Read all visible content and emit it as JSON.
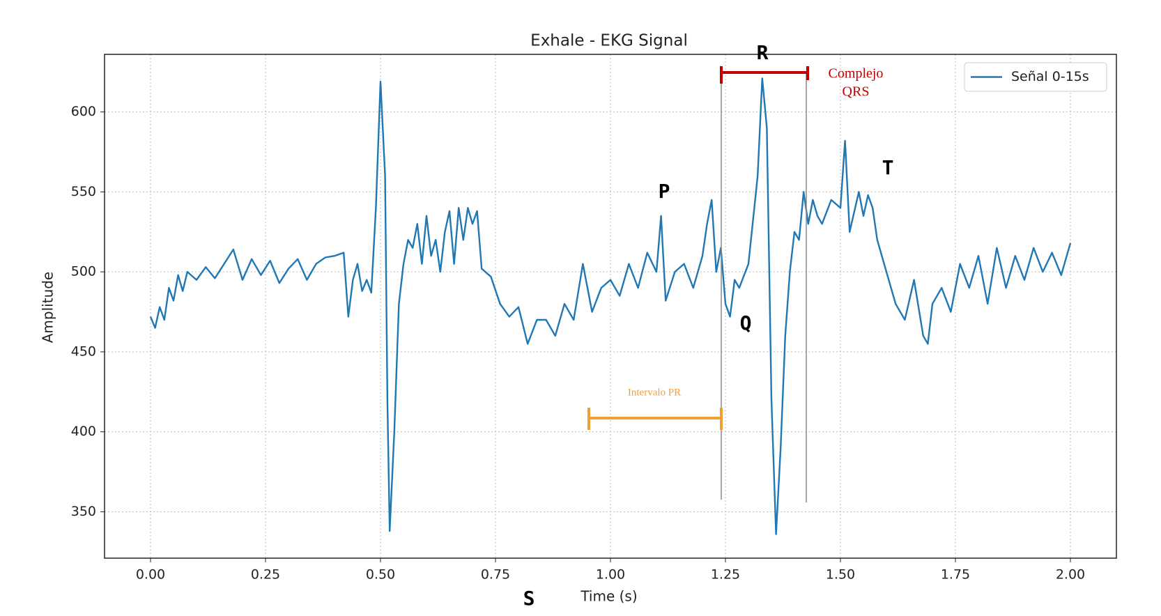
{
  "chart_data": {
    "type": "line",
    "title": "Exhale - EKG Signal",
    "x_label": "Time (s)",
    "y_label": "Amplitude",
    "x": [
      0,
      0.01,
      0.02,
      0.03,
      0.04,
      0.05,
      0.06,
      0.07,
      0.08,
      0.1,
      0.12,
      0.14,
      0.16,
      0.18,
      0.2,
      0.22,
      0.24,
      0.26,
      0.28,
      0.3,
      0.32,
      0.34,
      0.36,
      0.38,
      0.4,
      0.42,
      0.43,
      0.44,
      0.45,
      0.46,
      0.47,
      0.48,
      0.49,
      0.5,
      0.51,
      0.515,
      0.52,
      0.53,
      0.54,
      0.55,
      0.56,
      0.57,
      0.58,
      0.59,
      0.6,
      0.61,
      0.62,
      0.63,
      0.64,
      0.65,
      0.66,
      0.67,
      0.68,
      0.69,
      0.7,
      0.71,
      0.72,
      0.74,
      0.76,
      0.78,
      0.8,
      0.82,
      0.84,
      0.86,
      0.88,
      0.9,
      0.92,
      0.94,
      0.96,
      0.98,
      1,
      1.02,
      1.04,
      1.06,
      1.08,
      1.1,
      1.11,
      1.12,
      1.14,
      1.16,
      1.18,
      1.2,
      1.21,
      1.22,
      1.23,
      1.24,
      1.25,
      1.26,
      1.27,
      1.28,
      1.3,
      1.32,
      1.33,
      1.34,
      1.35,
      1.36,
      1.37,
      1.38,
      1.39,
      1.4,
      1.41,
      1.42,
      1.43,
      1.44,
      1.45,
      1.46,
      1.48,
      1.5,
      1.51,
      1.52,
      1.54,
      1.55,
      1.56,
      1.57,
      1.58,
      1.6,
      1.62,
      1.64,
      1.66,
      1.68,
      1.69,
      1.7,
      1.72,
      1.74,
      1.76,
      1.78,
      1.8,
      1.82,
      1.84,
      1.86,
      1.88,
      1.9,
      1.92,
      1.94,
      1.96,
      1.98,
      2
    ],
    "series": [
      {
        "name": "Señal 0-15s",
        "color": "#1f77b4",
        "values": [
          472,
          465,
          478,
          470,
          490,
          482,
          498,
          488,
          500,
          495,
          503,
          496,
          505,
          514,
          495,
          508,
          498,
          507,
          493,
          502,
          508,
          495,
          505,
          509,
          510,
          512,
          472,
          495,
          505,
          488,
          495,
          487,
          540,
          619,
          560,
          420,
          338,
          400,
          480,
          505,
          520,
          515,
          530,
          505,
          535,
          510,
          520,
          500,
          525,
          538,
          505,
          540,
          520,
          540,
          530,
          538,
          502,
          497,
          480,
          472,
          478,
          455,
          470,
          470,
          460,
          480,
          470,
          505,
          475,
          490,
          495,
          485,
          505,
          490,
          512,
          500,
          535,
          482,
          500,
          505,
          490,
          510,
          530,
          545,
          500,
          515,
          480,
          472,
          495,
          490,
          505,
          560,
          621,
          590,
          420,
          336,
          390,
          460,
          500,
          525,
          520,
          550,
          530,
          545,
          535,
          530,
          545,
          540,
          582,
          525,
          550,
          535,
          548,
          540,
          520,
          500,
          480,
          470,
          495,
          460,
          455,
          480,
          490,
          475,
          505,
          490,
          510,
          480,
          515,
          490,
          510,
          495,
          515,
          500,
          512,
          498,
          518
        ]
      }
    ],
    "xlim": [
      -0.1,
      2.1
    ],
    "ylim": [
      321,
      636
    ],
    "xticks": [
      {
        "value": 0,
        "label": "0.00"
      },
      {
        "value": 0.25,
        "label": "0.25"
      },
      {
        "value": 0.5,
        "label": "0.50"
      },
      {
        "value": 0.75,
        "label": "0.75"
      },
      {
        "value": 1,
        "label": "1.00"
      },
      {
        "value": 1.25,
        "label": "1.25"
      },
      {
        "value": 1.5,
        "label": "1.50"
      },
      {
        "value": 1.75,
        "label": "1.75"
      },
      {
        "value": 2,
        "label": "2.00"
      }
    ],
    "yticks": [
      350,
      400,
      450,
      500,
      550,
      600
    ],
    "grid": true,
    "legend": "upper right",
    "annotations": [
      "P",
      "Q",
      "R",
      "S",
      "T",
      "Complejo",
      "QRS",
      "Intervalo PR"
    ]
  }
}
